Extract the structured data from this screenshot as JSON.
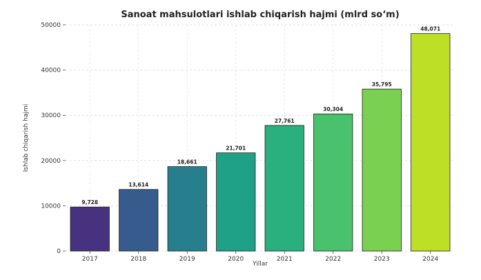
{
  "chart_data": {
    "type": "bar",
    "title": "Sanoat mahsulotlari ishlab chiqarish hajmi (mlrd so‘m)",
    "xlabel": "Yillar",
    "ylabel": "Ishlab chiqarish hajmi",
    "categories": [
      "2017",
      "2018",
      "2019",
      "2020",
      "2021",
      "2022",
      "2023",
      "2024"
    ],
    "values": [
      9728,
      13614,
      18661,
      21701,
      27761,
      30304,
      35795,
      48071
    ],
    "data_labels": [
      "9,728",
      "13,614",
      "18,661",
      "21,701",
      "27,761",
      "30,304",
      "35,795",
      "48,071"
    ],
    "bar_colors": [
      "#46327e",
      "#365c8d",
      "#277f8e",
      "#1fa187",
      "#2ab07f",
      "#4ac16d",
      "#7ad151",
      "#bddf26"
    ],
    "ylim": [
      0,
      50000
    ],
    "yticks": [
      0,
      10000,
      20000,
      30000,
      40000,
      50000
    ],
    "grid": true,
    "legend": "none"
  }
}
